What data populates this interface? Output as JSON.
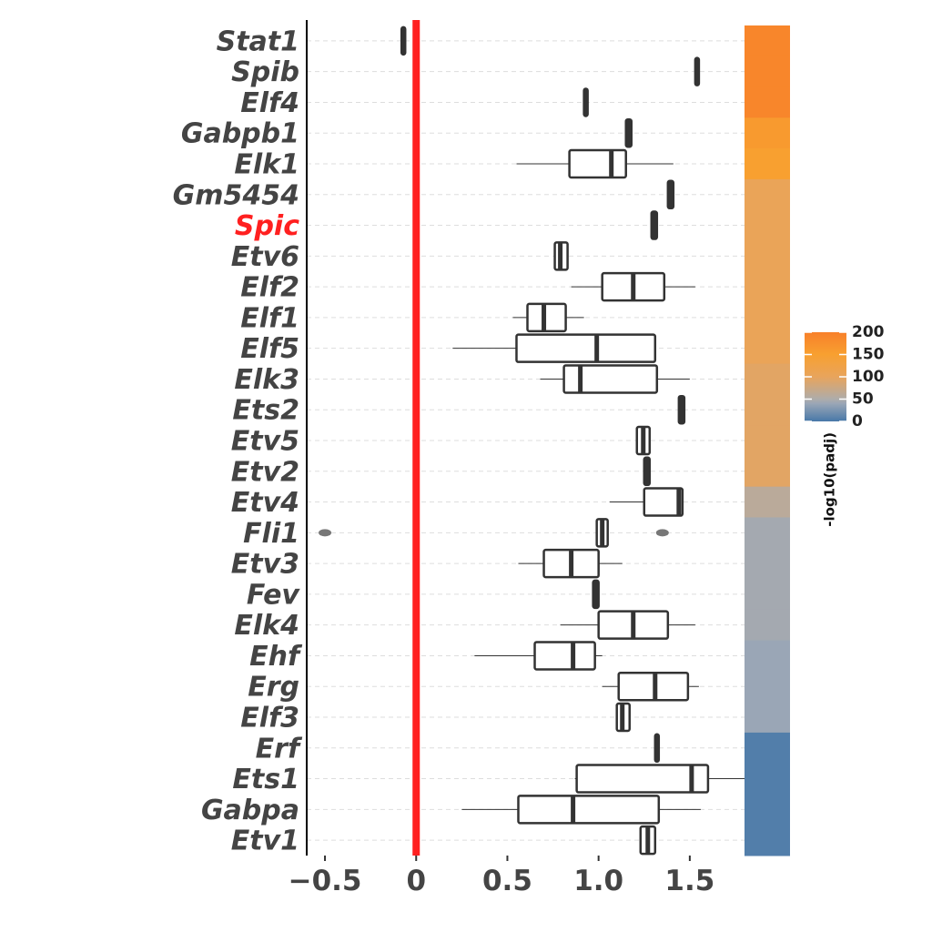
{
  "chart_data": {
    "type": "boxplot",
    "orientation": "horizontal",
    "categories": [
      "Stat1",
      "Spib",
      "Elf4",
      "Gabpb1",
      "Elk1",
      "Gm5454",
      "Spic",
      "Etv6",
      "Elf2",
      "Elf1",
      "Elf5",
      "Elk3",
      "Ets2",
      "Etv5",
      "Etv2",
      "Etv4",
      "Fli1",
      "Etv3",
      "Fev",
      "Elk4",
      "Ehf",
      "Erg",
      "Elf3",
      "Erf",
      "Ets1",
      "Gabpa",
      "Etv1"
    ],
    "category_label_colors": [
      "#444444",
      "#444444",
      "#444444",
      "#444444",
      "#444444",
      "#444444",
      "#ff2020",
      "#444444",
      "#444444",
      "#444444",
      "#444444",
      "#444444",
      "#444444",
      "#444444",
      "#444444",
      "#444444",
      "#444444",
      "#444444",
      "#444444",
      "#444444",
      "#444444",
      "#444444",
      "#444444",
      "#444444",
      "#444444",
      "#444444",
      "#444444"
    ],
    "whislo": [
      -0.08,
      1.53,
      0.92,
      1.15,
      0.55,
      1.38,
      1.29,
      0.76,
      0.85,
      0.53,
      0.2,
      0.68,
      1.44,
      1.21,
      1.25,
      1.06,
      0.99,
      0.56,
      0.97,
      0.79,
      0.32,
      1.02,
      1.1,
      1.31,
      0.87,
      0.25,
      1.23
    ],
    "q1": [
      -0.08,
      1.53,
      0.92,
      1.15,
      0.84,
      1.38,
      1.29,
      0.76,
      1.02,
      0.61,
      0.55,
      0.81,
      1.44,
      1.21,
      1.25,
      1.25,
      0.99,
      0.7,
      0.97,
      1.0,
      0.65,
      1.11,
      1.1,
      1.31,
      0.88,
      0.56,
      1.23
    ],
    "median": [
      -0.07,
      1.54,
      0.93,
      1.165,
      1.07,
      1.395,
      1.305,
      0.79,
      1.19,
      0.7,
      0.99,
      0.9,
      1.455,
      1.245,
      1.265,
      1.44,
      1.02,
      0.85,
      0.985,
      1.19,
      0.86,
      1.31,
      1.13,
      1.32,
      1.51,
      0.86,
      1.27
    ],
    "q3": [
      -0.06,
      1.55,
      0.94,
      1.18,
      1.15,
      1.41,
      1.32,
      0.83,
      1.36,
      0.82,
      1.31,
      1.32,
      1.47,
      1.28,
      1.28,
      1.46,
      1.05,
      1.0,
      1.0,
      1.38,
      0.98,
      1.49,
      1.17,
      1.33,
      1.6,
      1.33,
      1.31
    ],
    "whishi": [
      -0.06,
      1.55,
      0.94,
      1.18,
      1.41,
      1.41,
      1.32,
      0.83,
      1.53,
      0.92,
      1.31,
      1.5,
      1.47,
      1.28,
      1.28,
      1.46,
      1.05,
      1.13,
      1.0,
      1.53,
      1.02,
      1.55,
      1.17,
      1.33,
      1.8,
      1.56,
      1.31
    ],
    "fliers": [
      [],
      [],
      [],
      [],
      [],
      [],
      [],
      [],
      [],
      [],
      [],
      [],
      [],
      [],
      [],
      [],
      [
        -0.5,
        1.35
      ],
      [],
      [],
      [],
      [],
      [],
      [],
      [],
      [],
      [],
      []
    ],
    "padj": [
      190,
      190,
      190,
      160,
      150,
      105,
      105,
      105,
      105,
      105,
      105,
      95,
      95,
      95,
      95,
      60,
      45,
      45,
      45,
      45,
      40,
      40,
      40,
      5,
      5,
      5,
      5
    ],
    "colorscale": [
      [
        0,
        "#4878a8"
      ],
      [
        40,
        "#9aa6b6"
      ],
      [
        50,
        "#aeacaa"
      ],
      [
        100,
        "#e8a45c"
      ],
      [
        150,
        "#f8a030"
      ],
      [
        200,
        "#f8802a"
      ]
    ],
    "legend_title": "-log10(padj)",
    "clim": [
      0,
      200
    ],
    "cticks": [
      0,
      50,
      100,
      150,
      200
    ],
    "xlim": [
      -0.6,
      1.8
    ],
    "xticks": [
      {
        "value": -0.5,
        "label": "−0.5"
      },
      0,
      0.5,
      {
        "value": 1,
        "label": "1.0"
      },
      1.5
    ],
    "vline": 0,
    "vline_color": "#ff2020",
    "grid": true,
    "box_color": "#333333",
    "flier_color": "#777777"
  }
}
